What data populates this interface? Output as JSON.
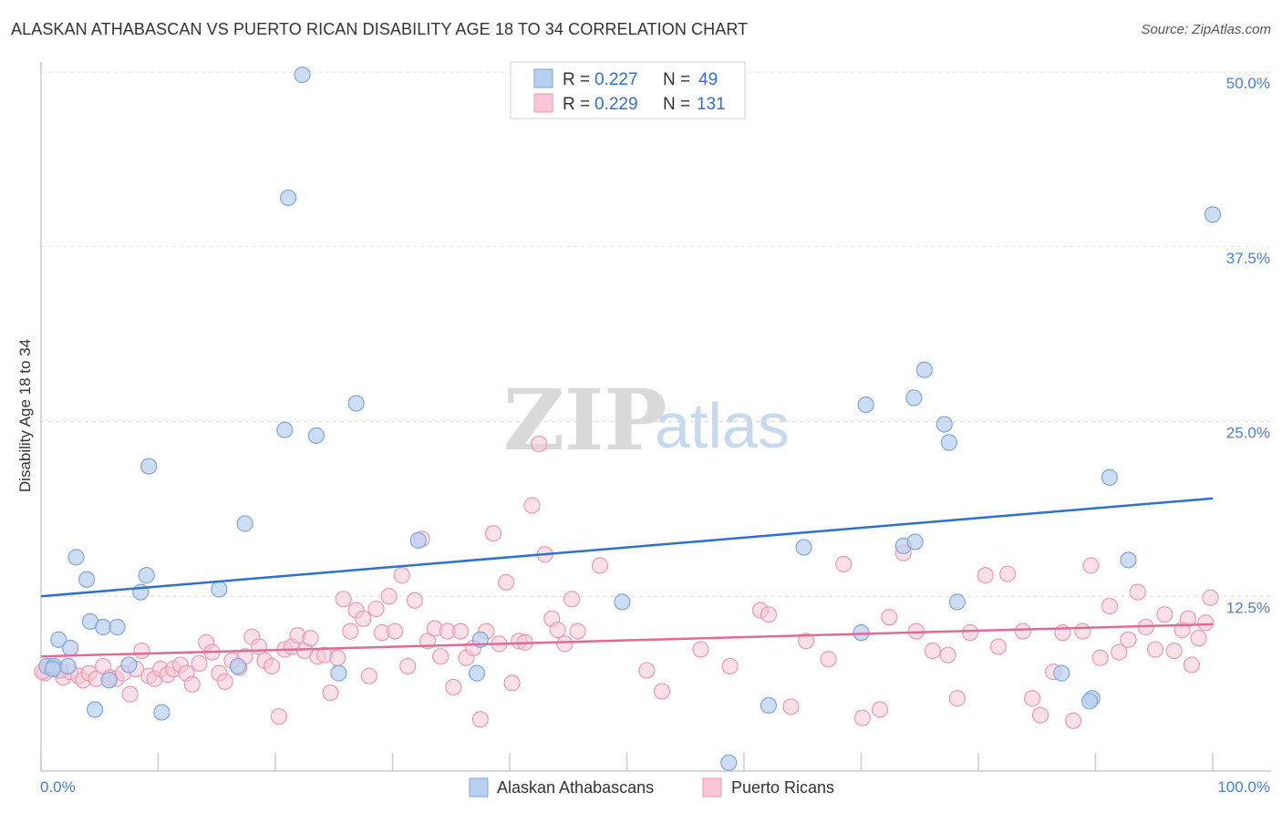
{
  "title": "ALASKAN ATHABASCAN VS PUERTO RICAN DISABILITY AGE 18 TO 34 CORRELATION CHART",
  "source": "Source: ZipAtlas.com",
  "watermark": {
    "part1": "ZIP",
    "part2": "atlas"
  },
  "legend": {
    "rows": [
      {
        "r_label": "R = ",
        "r_value": "0.227",
        "n_label": "N = ",
        "n_value": "49"
      },
      {
        "r_label": "R = ",
        "r_value": "0.229",
        "n_label": "N = ",
        "n_value": "131"
      }
    ]
  },
  "bottom_legend": {
    "series1": "Alaskan Athabascans",
    "series2": "Puerto Ricans"
  },
  "colors": {
    "blue_fill": "#b8d0f0",
    "blue_stroke": "#7ea6dc",
    "blue_line": "#2f6fd1",
    "pink_fill": "#f8c6d6",
    "pink_stroke": "#eb9ab6",
    "pink_line": "#e06a95",
    "tick_text": "#4a7fd0"
  },
  "chart_data": {
    "type": "scatter",
    "title": "ALASKAN ATHABASCAN VS PUERTO RICAN DISABILITY AGE 18 TO 34 CORRELATION CHART",
    "xlabel": "",
    "ylabel": "Disability Age 18 to 34",
    "xlim": [
      0,
      100
    ],
    "ylim": [
      0,
      50
    ],
    "x_tick_labels": [
      "0.0%",
      "100.0%"
    ],
    "y_tick_labels": [
      "12.5%",
      "25.0%",
      "37.5%",
      "50.0%"
    ],
    "y_ticks": [
      12.5,
      25,
      37.5,
      50
    ],
    "grid": "dashed horizontal",
    "legend_position": "top-center",
    "series": [
      {
        "name": "Alaskan Athabascans",
        "R": 0.227,
        "N": 49,
        "trend": [
          [
            0,
            12.5
          ],
          [
            100,
            19.5
          ]
        ],
        "points": [
          [
            22.3,
            49.8
          ],
          [
            21.1,
            41.0
          ],
          [
            100,
            39.8
          ],
          [
            26.9,
            26.3
          ],
          [
            20.8,
            24.4
          ],
          [
            23.5,
            24.0
          ],
          [
            9.2,
            21.8
          ],
          [
            17.4,
            17.7
          ],
          [
            32.2,
            16.5
          ],
          [
            3.0,
            15.3
          ],
          [
            3.9,
            13.7
          ],
          [
            9.0,
            14.0
          ],
          [
            8.5,
            12.8
          ],
          [
            15.2,
            13.0
          ],
          [
            0.5,
            7.5
          ],
          [
            1.1,
            7.5
          ],
          [
            2.3,
            7.5
          ],
          [
            1.5,
            9.4
          ],
          [
            2.5,
            8.8
          ],
          [
            4.2,
            10.7
          ],
          [
            5.3,
            10.3
          ],
          [
            6.5,
            10.3
          ],
          [
            7.5,
            7.6
          ],
          [
            5.8,
            6.5
          ],
          [
            4.6,
            4.4
          ],
          [
            10.3,
            4.2
          ],
          [
            16.8,
            7.5
          ],
          [
            25.4,
            7.0
          ],
          [
            37.5,
            9.4
          ],
          [
            37.2,
            7.0
          ],
          [
            49.6,
            12.1
          ],
          [
            58.7,
            0.6
          ],
          [
            62.1,
            4.7
          ],
          [
            65.1,
            16.0
          ],
          [
            70.4,
            26.2
          ],
          [
            73.6,
            16.1
          ],
          [
            74.6,
            16.4
          ],
          [
            74.5,
            26.7
          ],
          [
            75.4,
            28.7
          ],
          [
            77.1,
            24.8
          ],
          [
            77.5,
            23.5
          ],
          [
            78.2,
            12.1
          ],
          [
            70.0,
            9.9
          ],
          [
            89.7,
            5.2
          ],
          [
            87.1,
            7.0
          ],
          [
            89.5,
            5.0
          ],
          [
            91.2,
            21.0
          ],
          [
            92.8,
            15.1
          ],
          [
            1.0,
            7.3
          ]
        ]
      },
      {
        "name": "Puerto Ricans",
        "R": 0.229,
        "N": 131,
        "trend": [
          [
            0,
            8.2
          ],
          [
            100,
            10.5
          ]
        ],
        "points": [
          [
            0.3,
            7.0
          ],
          [
            0.8,
            7.5
          ],
          [
            1.3,
            7.3
          ],
          [
            1.9,
            6.7
          ],
          [
            2.5,
            7.1
          ],
          [
            3.2,
            6.8
          ],
          [
            3.6,
            6.5
          ],
          [
            4.1,
            7.0
          ],
          [
            4.7,
            6.6
          ],
          [
            5.3,
            7.5
          ],
          [
            5.9,
            6.7
          ],
          [
            6.4,
            6.6
          ],
          [
            7.0,
            7.0
          ],
          [
            7.6,
            5.5
          ],
          [
            8.1,
            7.3
          ],
          [
            8.6,
            8.6
          ],
          [
            9.2,
            6.8
          ],
          [
            9.7,
            6.6
          ],
          [
            10.2,
            7.3
          ],
          [
            10.8,
            6.9
          ],
          [
            11.3,
            7.3
          ],
          [
            11.9,
            7.6
          ],
          [
            12.4,
            7.0
          ],
          [
            12.9,
            6.2
          ],
          [
            13.5,
            7.7
          ],
          [
            14.1,
            9.2
          ],
          [
            14.6,
            8.5
          ],
          [
            15.2,
            7.0
          ],
          [
            15.7,
            6.4
          ],
          [
            16.3,
            7.9
          ],
          [
            16.9,
            7.4
          ],
          [
            17.4,
            8.2
          ],
          [
            18.0,
            9.6
          ],
          [
            18.6,
            8.9
          ],
          [
            19.1,
            7.9
          ],
          [
            19.7,
            7.5
          ],
          [
            20.3,
            3.9
          ],
          [
            20.8,
            8.7
          ],
          [
            21.4,
            8.9
          ],
          [
            21.9,
            9.7
          ],
          [
            22.5,
            8.6
          ],
          [
            23.0,
            9.5
          ],
          [
            23.6,
            8.2
          ],
          [
            24.2,
            8.3
          ],
          [
            24.7,
            5.6
          ],
          [
            25.3,
            8.1
          ],
          [
            25.8,
            12.3
          ],
          [
            26.4,
            10.0
          ],
          [
            26.9,
            11.5
          ],
          [
            27.5,
            10.9
          ],
          [
            28.0,
            6.8
          ],
          [
            28.6,
            11.6
          ],
          [
            29.1,
            9.9
          ],
          [
            29.7,
            12.5
          ],
          [
            30.2,
            10.0
          ],
          [
            30.8,
            14.0
          ],
          [
            31.3,
            7.5
          ],
          [
            31.9,
            12.2
          ],
          [
            32.5,
            16.6
          ],
          [
            33.0,
            9.3
          ],
          [
            33.6,
            10.2
          ],
          [
            34.1,
            8.2
          ],
          [
            34.7,
            10.0
          ],
          [
            35.2,
            6.0
          ],
          [
            35.8,
            10.0
          ],
          [
            36.3,
            8.1
          ],
          [
            36.9,
            8.8
          ],
          [
            37.5,
            3.7
          ],
          [
            38.0,
            10.0
          ],
          [
            38.6,
            17.0
          ],
          [
            39.1,
            9.1
          ],
          [
            39.7,
            13.5
          ],
          [
            40.2,
            6.3
          ],
          [
            40.8,
            9.3
          ],
          [
            41.3,
            9.2
          ],
          [
            41.9,
            19.0
          ],
          [
            42.5,
            23.4
          ],
          [
            43.0,
            15.5
          ],
          [
            43.6,
            10.9
          ],
          [
            44.1,
            10.1
          ],
          [
            44.7,
            9.1
          ],
          [
            45.3,
            12.3
          ],
          [
            45.8,
            10.0
          ],
          [
            47.7,
            14.7
          ],
          [
            51.7,
            7.2
          ],
          [
            53.0,
            5.7
          ],
          [
            56.3,
            8.7
          ],
          [
            58.8,
            7.5
          ],
          [
            61.4,
            11.5
          ],
          [
            62.1,
            11.2
          ],
          [
            64.0,
            4.6
          ],
          [
            65.3,
            9.3
          ],
          [
            67.2,
            8.0
          ],
          [
            68.5,
            14.8
          ],
          [
            70.1,
            3.8
          ],
          [
            71.6,
            4.4
          ],
          [
            72.4,
            11.0
          ],
          [
            73.6,
            15.6
          ],
          [
            74.7,
            10.0
          ],
          [
            76.1,
            8.6
          ],
          [
            77.4,
            8.3
          ],
          [
            78.2,
            5.2
          ],
          [
            79.3,
            9.9
          ],
          [
            80.6,
            14.0
          ],
          [
            81.7,
            8.9
          ],
          [
            82.5,
            14.1
          ],
          [
            83.8,
            10.0
          ],
          [
            84.6,
            5.2
          ],
          [
            85.3,
            4.0
          ],
          [
            86.4,
            7.1
          ],
          [
            87.2,
            9.9
          ],
          [
            88.1,
            3.6
          ],
          [
            88.9,
            10.0
          ],
          [
            89.6,
            14.7
          ],
          [
            90.4,
            8.1
          ],
          [
            91.2,
            11.8
          ],
          [
            92.0,
            8.5
          ],
          [
            92.8,
            9.4
          ],
          [
            93.6,
            12.8
          ],
          [
            94.3,
            10.3
          ],
          [
            95.1,
            8.7
          ],
          [
            95.9,
            11.2
          ],
          [
            96.7,
            8.6
          ],
          [
            97.4,
            10.1
          ],
          [
            98.2,
            7.6
          ],
          [
            98.8,
            9.5
          ],
          [
            99.4,
            10.6
          ],
          [
            99.8,
            12.4
          ],
          [
            0.1,
            7.1
          ],
          [
            1.6,
            7.2
          ],
          [
            97.9,
            10.9
          ]
        ]
      }
    ]
  }
}
